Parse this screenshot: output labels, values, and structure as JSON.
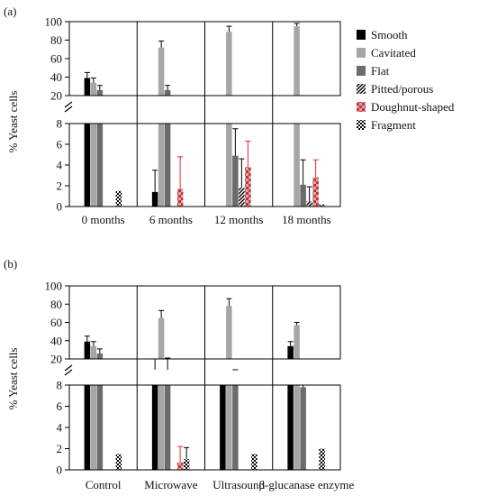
{
  "figure": {
    "legend": [
      "Smooth",
      "Cavitated",
      "Flat",
      "Pitted/porous",
      "Doughnut-shaped",
      "Fragment"
    ]
  },
  "colors": {
    "smooth": "#000000",
    "cavitated": "#a6a6a6",
    "flat": "#6b6b6b",
    "pitted": "hatch-black-white",
    "doughnut": "check-red-grey",
    "fragment": "check-black-white",
    "error_red": "#e8262a",
    "axis": "#000000"
  },
  "chart_data": [
    {
      "type": "bar",
      "panel_label": "(a)",
      "ylabel": "% Yeast cells",
      "axis_break": true,
      "upper_yticks": [
        "20",
        "40",
        "60",
        "80",
        "100"
      ],
      "lower_yticks": [
        "0",
        "2",
        "4",
        "6",
        "8"
      ],
      "upper_ylim": [
        20,
        100
      ],
      "lower_ylim": [
        0,
        8
      ],
      "categories": [
        "0 months",
        "6 months",
        "12 months",
        "18 months"
      ],
      "series": [
        {
          "name": "Smooth",
          "values": [
            39,
            1.4,
            0,
            0
          ],
          "errors": [
            6,
            2.1,
            0,
            0
          ]
        },
        {
          "name": "Cavitated",
          "values": [
            34,
            72,
            89,
            95
          ],
          "errors": [
            5,
            7,
            6,
            3
          ]
        },
        {
          "name": "Flat",
          "values": [
            26,
            26,
            4.9,
            2.1
          ],
          "errors": [
            5,
            5,
            2.6,
            2.4
          ]
        },
        {
          "name": "Pitted/porous",
          "values": [
            0,
            0,
            1.8,
            0.5
          ],
          "errors": [
            0,
            0,
            2.8,
            1.4
          ]
        },
        {
          "name": "Doughnut-shaped",
          "values": [
            0,
            1.7,
            3.8,
            2.8
          ],
          "errors": [
            0,
            3.1,
            2.5,
            1.7
          ]
        },
        {
          "name": "Fragment",
          "values": [
            1.5,
            0,
            0,
            0.2
          ],
          "errors": [
            0,
            0,
            0,
            0
          ]
        }
      ]
    },
    {
      "type": "bar",
      "panel_label": "(b)",
      "ylabel": "% Yeast cells",
      "axis_break": true,
      "upper_yticks": [
        "20",
        "40",
        "60",
        "80",
        "100"
      ],
      "lower_yticks": [
        "0",
        "2",
        "4",
        "6",
        "8"
      ],
      "upper_ylim": [
        20,
        100
      ],
      "lower_ylim": [
        0,
        8
      ],
      "categories": [
        "Control",
        "Microwave",
        "Ultrasound",
        "β-glucanase enzyme"
      ],
      "series": [
        {
          "name": "Smooth",
          "values": [
            39,
            17,
            10,
            34
          ],
          "errors": [
            6,
            3,
            0,
            5
          ]
        },
        {
          "name": "Cavitated",
          "values": [
            34,
            65,
            78,
            57
          ],
          "errors": [
            5,
            8,
            8,
            3
          ]
        },
        {
          "name": "Flat",
          "values": [
            26,
            17,
            12,
            7.8
          ],
          "errors": [
            5,
            4,
            5,
            0.2
          ]
        },
        {
          "name": "Pitted/porous",
          "values": [
            0,
            0,
            0,
            0
          ],
          "errors": [
            0,
            0,
            0,
            0
          ]
        },
        {
          "name": "Doughnut-shaped",
          "values": [
            0,
            0.7,
            0,
            0
          ],
          "errors": [
            0,
            1.5,
            0,
            0
          ]
        },
        {
          "name": "Fragment",
          "values": [
            1.5,
            1.0,
            1.5,
            2.0
          ],
          "errors": [
            0,
            1.1,
            0,
            0
          ]
        }
      ]
    }
  ]
}
